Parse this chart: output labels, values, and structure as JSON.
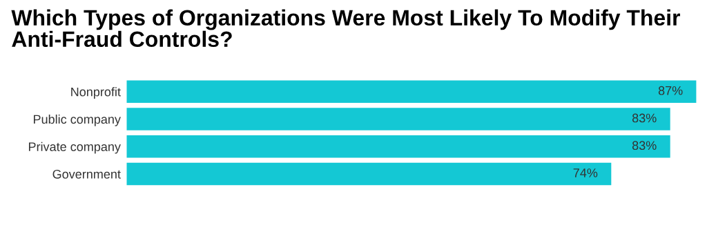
{
  "chart_data": {
    "type": "bar",
    "orientation": "horizontal",
    "title": "Which Types of Organizations Were Most Likely To Modify Their Anti-Fraud Controls?",
    "categories": [
      "Nonprofit",
      "Public company",
      "Private company",
      "Government"
    ],
    "values": [
      87,
      83,
      83,
      74
    ],
    "color": "#14c8d4",
    "value_labels": [
      "87%",
      "83%",
      "83%",
      "74%"
    ],
    "grid": false,
    "legend": false
  }
}
